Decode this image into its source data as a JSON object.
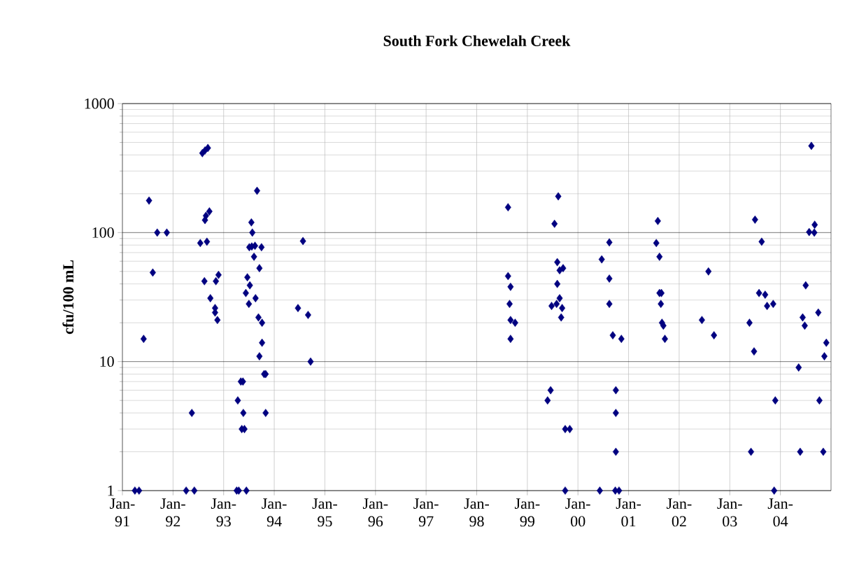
{
  "chart_data": {
    "type": "scatter",
    "title": "South Fork Chewelah Creek",
    "ylabel": "cfu/100 mL",
    "log": "y",
    "grid": true,
    "marker": "diamond",
    "xlim": [
      "1991-01",
      "2005-01"
    ],
    "ylim": [
      1,
      1000
    ],
    "yticks": [
      1,
      10,
      100,
      1000
    ],
    "xticks": [
      {
        "value": "1991-01",
        "label": "Jan-91"
      },
      {
        "value": "1992-01",
        "label": "Jan-92"
      },
      {
        "value": "1993-01",
        "label": "Jan-93"
      },
      {
        "value": "1994-01",
        "label": "Jan-94"
      },
      {
        "value": "1995-01",
        "label": "Jan-95"
      },
      {
        "value": "1996-01",
        "label": "Jan-96"
      },
      {
        "value": "1997-01",
        "label": "Jan-97"
      },
      {
        "value": "1998-01",
        "label": "Jan-98"
      },
      {
        "value": "1999-01",
        "label": "Jan-99"
      },
      {
        "value": "2000-01",
        "label": "Jan-00"
      },
      {
        "value": "2001-01",
        "label": "Jan-01"
      },
      {
        "value": "2002-01",
        "label": "Jan-02"
      },
      {
        "value": "2003-01",
        "label": "Jan-03"
      },
      {
        "value": "2004-01",
        "label": "Jan-04"
      }
    ],
    "series": [
      {
        "color": "#000080",
        "x": [
          "1991-04-01",
          "1991-05-01",
          "1991-06-03",
          "1991-07-12",
          "1991-08-08",
          "1991-09-09",
          "1991-11-17",
          "1992-04-05",
          "1992-05-16",
          "1992-06-03",
          "1992-07-31",
          "1992-08-19",
          "1992-09-09",
          "1992-07-16",
          "1992-09-02",
          "1992-08-19",
          "1992-08-26",
          "1992-09-20",
          "1992-08-15",
          "1992-11-06",
          "1992-11-25",
          "1992-09-27",
          "1992-10-31",
          "1992-10-31",
          "1992-11-17",
          "1993-04-05",
          "1993-04-20",
          "1993-06-14",
          "1993-04-13",
          "1993-05-05",
          "1993-05-20",
          "1993-05-23",
          "1993-05-12",
          "1993-05-31",
          "1993-06-21",
          "1993-07-09",
          "1993-06-10",
          "1993-07-02",
          "1993-07-20",
          "1993-07-27",
          "1993-07-05",
          "1993-07-23",
          "1993-08-15",
          "1993-10-01",
          "1993-08-08",
          "1993-08-30",
          "1993-09-16",
          "1993-08-19",
          "1993-09-09",
          "1993-10-05",
          "1993-10-05",
          "1993-09-16",
          "1993-10-20",
          "1993-10-31",
          "1993-10-31",
          "1994-06-21",
          "1994-07-27",
          "1994-09-02",
          "1994-09-20",
          "1998-08-15",
          "1998-08-15",
          "1998-09-02",
          "1998-08-26",
          "1998-09-02",
          "1998-10-05",
          "1998-09-02",
          "1999-08-12",
          "1999-07-16",
          "1999-08-05",
          "1999-08-22",
          "1999-09-16",
          "1999-08-05",
          "1999-06-25",
          "1999-07-31",
          "1999-08-22",
          "1999-09-09",
          "1999-09-02",
          "1999-06-18",
          "1999-05-27",
          "1999-10-01",
          "1999-11-03",
          "1999-10-01",
          "2000-08-15",
          "2000-06-21",
          "2000-08-15",
          "2000-08-15",
          "2000-09-09",
          "2000-11-10",
          "2000-10-01",
          "2000-10-01",
          "2000-10-01",
          "2000-06-07",
          "2000-09-27",
          "2000-10-24",
          "2001-07-31",
          "2001-07-20",
          "2001-08-12",
          "2001-08-12",
          "2001-08-26",
          "2001-08-22",
          "2001-08-30",
          "2001-09-09",
          "2001-09-20",
          "2002-07-31",
          "2002-06-14",
          "2002-09-09",
          "2003-07-02",
          "2003-08-19",
          "2003-07-31",
          "2003-09-13",
          "2003-09-27",
          "2003-11-10",
          "2003-05-23",
          "2003-06-25",
          "2003-11-25",
          "2003-06-03",
          "2003-11-17",
          "2004-08-12",
          "2004-09-05",
          "2004-07-27",
          "2004-09-02",
          "2004-07-02",
          "2004-06-10",
          "2004-06-25",
          "2004-10-01",
          "2004-11-28",
          "2004-11-14",
          "2004-05-12",
          "2004-10-09",
          "2004-05-23",
          "2004-11-06"
        ],
        "values": [
          1,
          1,
          15,
          177,
          49,
          100,
          100,
          1,
          4,
          1,
          413,
          433,
          453,
          83,
          85,
          125,
          135,
          146,
          42,
          42,
          47,
          31,
          26,
          24,
          21,
          1,
          1,
          1,
          5,
          7,
          7,
          4,
          3,
          3,
          45,
          39,
          34,
          28,
          120,
          100,
          77,
          78,
          79,
          77,
          65,
          211,
          53,
          31,
          22,
          20,
          14,
          11,
          8,
          8,
          4,
          26,
          86,
          23,
          10,
          157,
          46,
          38,
          28,
          21,
          20,
          15,
          191,
          117,
          59,
          51,
          53,
          40,
          27,
          28,
          31,
          26,
          22,
          6,
          5,
          3,
          3,
          1,
          84,
          62,
          44,
          28,
          16,
          15,
          6,
          4,
          2,
          1,
          1,
          1,
          123,
          83,
          65,
          34,
          34,
          28,
          20,
          19,
          15,
          50,
          21,
          16,
          126,
          85,
          34,
          33,
          27,
          28,
          20,
          12,
          5,
          2,
          1,
          470,
          115,
          101,
          100,
          39,
          22,
          19,
          24,
          14,
          11,
          9,
          5,
          2,
          2
        ]
      }
    ]
  }
}
